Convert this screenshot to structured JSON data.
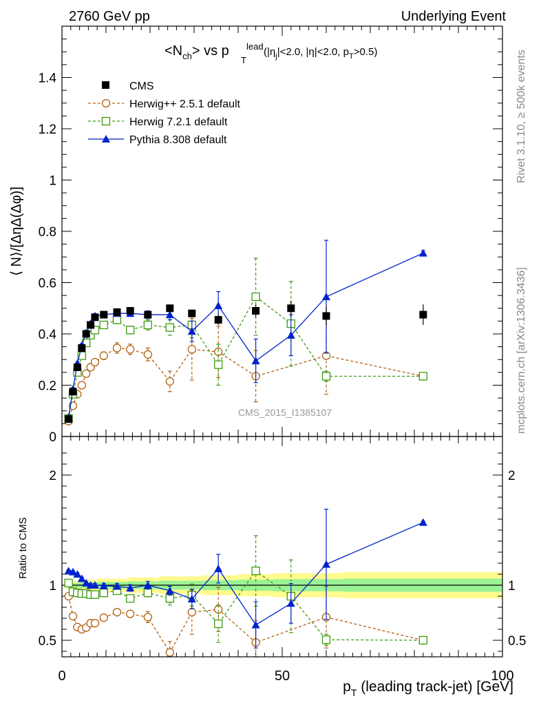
{
  "header": {
    "left_label": "2760 GeV pp",
    "right_label": "Underlying Event",
    "rivet_label": "Rivet 3.1.10, ≥ 500k events",
    "mcplots_label": "mcplots.cern.ch [arXiv:1306.3436]",
    "analysis_label": "CMS_2015_I1385107"
  },
  "colors": {
    "cms": "#000000",
    "herwig_pp": "#b25f0f",
    "herwig7": "#3e9a0f",
    "pythia": "#0022cc",
    "band_outer": "#fdfa8e",
    "band_inner": "#9bf294"
  },
  "chart_data": [
    {
      "type": "line",
      "panel": "main",
      "title": "<N_ch> vs p_T^lead (|η_j|<2.0, |η|<2.0, p_T>0.5)",
      "title_parts": {
        "base": "<N",
        "sub1": "ch",
        "mid": "> vs p",
        "sup": "lead",
        "sub2": "T",
        "cut_a": "(|η",
        "cut_a_sub": "j",
        "cut_b": "|<2.0, |η|<2.0, p",
        "cut_b_sub": "T",
        "cut_c": ">0.5)"
      },
      "ylabel": "⟨ N⟩/[ΔηΔ(Δφ)]",
      "xlim": [
        0,
        100
      ],
      "ylim": [
        0,
        1.6
      ],
      "yticks": [
        0,
        0.2,
        0.4,
        0.6,
        0.8,
        1,
        1.2,
        1.4
      ],
      "ytick_labels": [
        "0",
        "0.2",
        "0.4",
        "0.6",
        "0.8",
        "1",
        "1.2",
        "1.4"
      ],
      "legend_position": "top-left",
      "series": [
        {
          "name": "CMS",
          "key": "cms",
          "x": [
            1.5,
            2.5,
            3.5,
            4.5,
            5.5,
            6.5,
            7.5,
            9.5,
            12.5,
            15.5,
            19.5,
            24.5,
            29.5,
            35.5,
            44,
            52,
            60,
            82
          ],
          "values": [
            0.068,
            0.175,
            0.27,
            0.345,
            0.4,
            0.435,
            0.465,
            0.475,
            0.485,
            0.49,
            0.475,
            0.5,
            0.48,
            0.455,
            0.49,
            0.5,
            0.47,
            0.475
          ],
          "errors": [
            0.003,
            0.005,
            0.006,
            0.007,
            0.007,
            0.008,
            0.008,
            0.008,
            0.009,
            0.01,
            0.01,
            0.012,
            0.015,
            0.02,
            0.025,
            0.03,
            0.035,
            0.04
          ]
        },
        {
          "name": "Herwig++ 2.5.1 default",
          "key": "herwig_pp",
          "x": [
            1.5,
            2.5,
            3.5,
            4.5,
            5.5,
            6.5,
            7.5,
            9.5,
            12.5,
            15.5,
            19.5,
            24.5,
            29.5,
            35.5,
            44,
            60,
            82
          ],
          "values": [
            0.06,
            0.12,
            0.165,
            0.2,
            0.245,
            0.27,
            0.29,
            0.315,
            0.345,
            0.34,
            0.32,
            0.215,
            0.34,
            0.33,
            0.235,
            0.315,
            0.235
          ],
          "errors": [
            0.005,
            0.008,
            0.01,
            0.01,
            0.012,
            0.012,
            0.012,
            0.015,
            0.02,
            0.02,
            0.025,
            0.04,
            0.12,
            0.1,
            0.1,
            0.15,
            0.01
          ]
        },
        {
          "name": "Herwig 7.2.1 default",
          "key": "herwig7",
          "x": [
            1.5,
            2.5,
            3.5,
            4.5,
            5.5,
            6.5,
            7.5,
            9.5,
            12.5,
            15.5,
            19.5,
            24.5,
            29.5,
            35.5,
            44,
            52,
            60,
            82
          ],
          "values": [
            0.07,
            0.165,
            0.25,
            0.315,
            0.365,
            0.395,
            0.415,
            0.435,
            0.455,
            0.415,
            0.435,
            0.425,
            0.435,
            0.28,
            0.545,
            0.44,
            0.235,
            0.235
          ],
          "errors": [
            0.004,
            0.006,
            0.008,
            0.008,
            0.008,
            0.01,
            0.01,
            0.012,
            0.015,
            0.015,
            0.02,
            0.03,
            0.05,
            0.08,
            0.15,
            0.165,
            0.02,
            0.01
          ]
        },
        {
          "name": "Pythia 8.308 default",
          "key": "pythia",
          "x": [
            1.5,
            2.5,
            3.5,
            4.5,
            5.5,
            6.5,
            7.5,
            9.5,
            12.5,
            15.5,
            19.5,
            24.5,
            29.5,
            35.5,
            44,
            52,
            60,
            82
          ],
          "values": [
            0.075,
            0.185,
            0.285,
            0.355,
            0.405,
            0.44,
            0.47,
            0.475,
            0.48,
            0.48,
            0.475,
            0.475,
            0.41,
            0.51,
            0.295,
            0.395,
            0.545,
            0.715
          ],
          "errors": [
            0.003,
            0.005,
            0.006,
            0.007,
            0.008,
            0.008,
            0.008,
            0.01,
            0.01,
            0.012,
            0.015,
            0.02,
            0.04,
            0.055,
            0.085,
            0.08,
            0.22,
            0.01
          ]
        }
      ]
    },
    {
      "type": "line",
      "panel": "ratio",
      "ylabel": "Ratio to CMS",
      "xlabel_parts": {
        "p": "p",
        "sub": "T",
        "rest": " (leading track-jet) [GeV]"
      },
      "xlim": [
        0,
        100
      ],
      "ylim": [
        0.35,
        2.35
      ],
      "yticks": [
        0.5,
        1,
        2
      ],
      "ytick_labels": [
        "0.5",
        "1",
        "2"
      ],
      "xticks": [
        0,
        50,
        100
      ],
      "xtick_labels": [
        "0",
        "50",
        "100"
      ],
      "band": {
        "x_edges": [
          1,
          4,
          8,
          15,
          22,
          27,
          32,
          40,
          48,
          56,
          64,
          100
        ],
        "outer": [
          0.04,
          0.05,
          0.06,
          0.07,
          0.08,
          0.08,
          0.09,
          0.1,
          0.11,
          0.11,
          0.12
        ],
        "inner": [
          0.02,
          0.025,
          0.03,
          0.035,
          0.04,
          0.04,
          0.045,
          0.05,
          0.055,
          0.055,
          0.06
        ]
      },
      "series": [
        {
          "name": "Herwig++ 2.5.1 default",
          "key": "herwig_pp",
          "x": [
            1.5,
            2.5,
            3.5,
            4.5,
            5.5,
            6.5,
            7.5,
            9.5,
            12.5,
            15.5,
            19.5,
            24.5,
            29.5,
            35.5,
            44,
            60,
            82
          ],
          "values": [
            0.9,
            0.72,
            0.62,
            0.6,
            0.615,
            0.655,
            0.655,
            0.705,
            0.755,
            0.74,
            0.71,
            0.39,
            0.755,
            0.78,
            0.48,
            0.71,
            0.5
          ],
          "errors": [
            0.01,
            0.015,
            0.015,
            0.015,
            0.015,
            0.015,
            0.02,
            0.02,
            0.03,
            0.03,
            0.05,
            0.1,
            0.2,
            0.2,
            0.2,
            0.28,
            0.01
          ]
        },
        {
          "name": "Herwig 7.2.1 default",
          "key": "herwig7",
          "x": [
            1.5,
            2.5,
            3.5,
            4.5,
            5.5,
            6.5,
            7.5,
            9.5,
            12.5,
            15.5,
            19.5,
            24.5,
            29.5,
            35.5,
            44,
            52,
            60,
            82
          ],
          "values": [
            1.02,
            0.94,
            0.93,
            0.925,
            0.925,
            0.915,
            0.915,
            0.93,
            0.95,
            0.88,
            0.93,
            0.88,
            0.91,
            0.65,
            1.13,
            0.9,
            0.505,
            0.5
          ],
          "errors": [
            0.01,
            0.012,
            0.012,
            0.012,
            0.012,
            0.015,
            0.015,
            0.02,
            0.025,
            0.03,
            0.035,
            0.06,
            0.1,
            0.17,
            0.32,
            0.33,
            0.05,
            0.01
          ]
        },
        {
          "name": "Pythia 8.308 default",
          "key": "pythia",
          "x": [
            1.5,
            2.5,
            3.5,
            4.5,
            5.5,
            6.5,
            7.5,
            9.5,
            12.5,
            15.5,
            19.5,
            24.5,
            29.5,
            35.5,
            44,
            52,
            60,
            82
          ],
          "values": [
            1.13,
            1.12,
            1.1,
            1.06,
            1.02,
            1.0,
            1.0,
            0.995,
            0.99,
            0.975,
            1.0,
            0.95,
            0.875,
            1.15,
            0.64,
            0.835,
            1.19,
            1.57
          ],
          "errors": [
            0.01,
            0.012,
            0.012,
            0.012,
            0.012,
            0.015,
            0.015,
            0.02,
            0.025,
            0.03,
            0.035,
            0.04,
            0.09,
            0.13,
            0.21,
            0.18,
            0.5,
            0.01
          ]
        }
      ]
    }
  ]
}
